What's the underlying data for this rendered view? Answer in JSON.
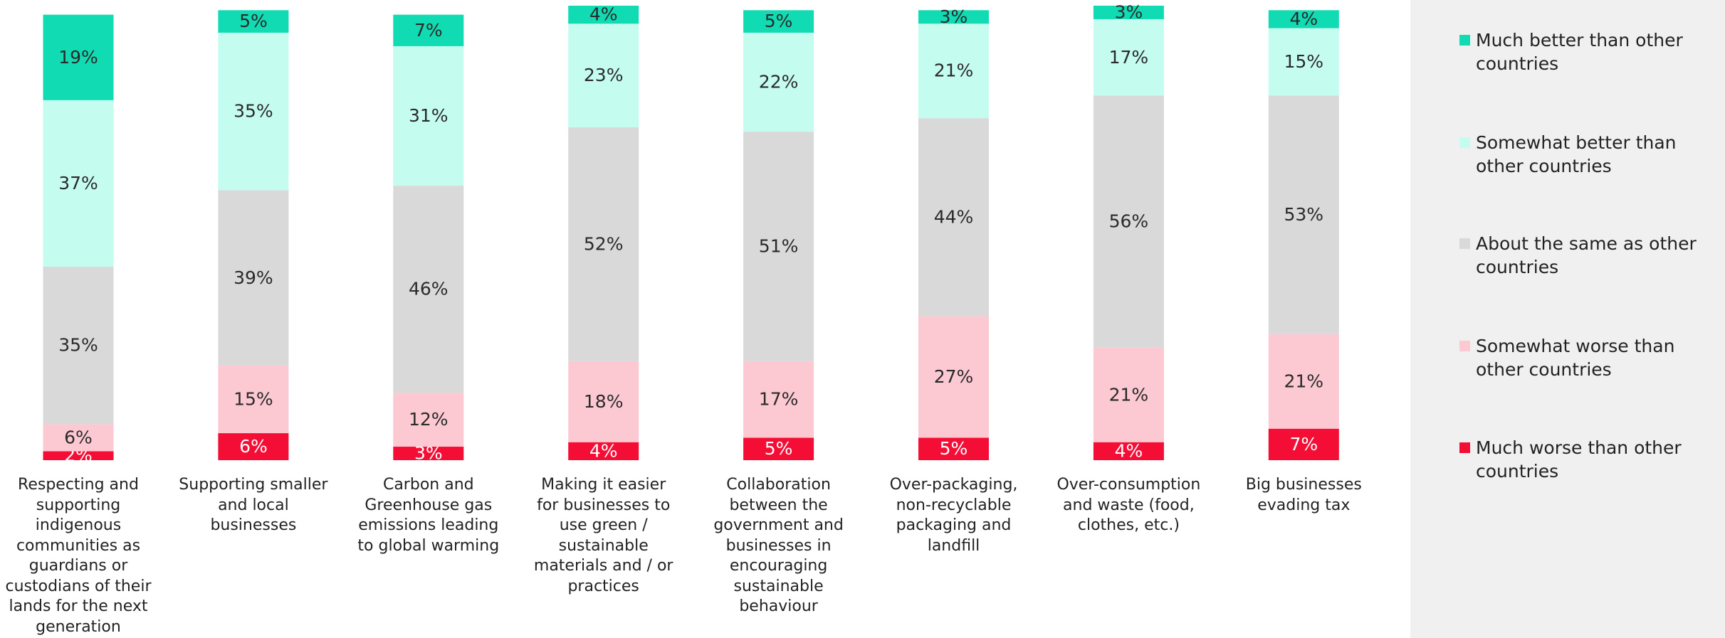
{
  "chart_data": {
    "type": "stacked_bar",
    "categories": [
      "Respecting and supporting indigenous communities as guardians or custodians of their lands for the next generation",
      "Supporting smaller and local businesses",
      "Carbon and Greenhouse gas emissions leading to global warming",
      "Making it easier for businesses to use green / sustainable materials and / or practices",
      "Collaboration between the government and businesses in encouraging sustainable behaviour",
      "Over-packaging, non-recyclable packaging and landfill",
      "Over-consumption and waste (food, clothes, etc.)",
      "Big businesses evading tax"
    ],
    "series": [
      {
        "name": "Much worse than other countries",
        "color": "#f40d35",
        "values": [
          2,
          6,
          3,
          4,
          5,
          5,
          4,
          7
        ],
        "value_labels": [
          "2%",
          "6%",
          "3%",
          "4%",
          "5%",
          "5%",
          "4%",
          "7%"
        ]
      },
      {
        "name": "Somewhat worse than other countries",
        "color": "#fcc9d3",
        "values": [
          6,
          15,
          12,
          18,
          17,
          27,
          21,
          21
        ],
        "value_labels": [
          "6%",
          "15%",
          "12%",
          "18%",
          "17%",
          "27%",
          "21%",
          "21%"
        ]
      },
      {
        "name": "About the same as other countries",
        "color": "#d9d9d9",
        "values": [
          35,
          39,
          46,
          52,
          51,
          44,
          56,
          53
        ],
        "value_labels": [
          "35%",
          "39%",
          "46%",
          "52%",
          "51%",
          "44%",
          "56%",
          "53%"
        ]
      },
      {
        "name": "Somewhat better than other countries",
        "color": "#c5fcf0",
        "values": [
          37,
          35,
          31,
          23,
          22,
          21,
          17,
          15
        ],
        "value_labels": [
          "37%",
          "35%",
          "31%",
          "23%",
          "22%",
          "21%",
          "17%",
          "15%"
        ]
      },
      {
        "name": "Much better than other countries",
        "color": "#10dbb3",
        "values": [
          19,
          5,
          7,
          4,
          5,
          3,
          3,
          4
        ],
        "value_labels": [
          "19%",
          "5%",
          "7%",
          "4%",
          "5%",
          "3%",
          "3%",
          "4%"
        ]
      }
    ]
  }
}
